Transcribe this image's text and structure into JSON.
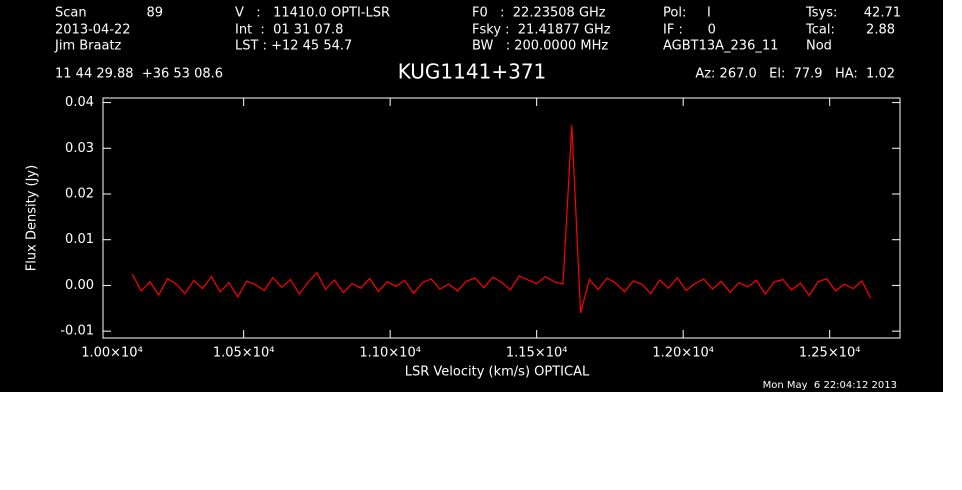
{
  "chart_data": {
    "type": "line",
    "title": "KUG1141+371",
    "annotations": [
      "Scan",
      "89",
      "2013-04-22",
      "Jim Braatz",
      "V   :   11410.0 OPTI-LSR",
      "Int  :  01 31 07.8",
      "LST : +12 45 54.7",
      "F0   :  22.23508 GHz",
      "Fsky :  21.41877 GHz",
      "BW   : 200.0000 MHz",
      "Pol:     I",
      "IF :      0",
      "AGBT13A_236_11",
      "Tsys:",
      "42.71",
      "Tcal:",
      "2.88",
      "Nod",
      "11 44 29.88  +36 53 08.6",
      "Az: 267.0   El:  77.9   HA:  1.02",
      "Mon May  6 22:04:12 2013"
    ],
    "x_label": "LSR Velocity (km/s) OPTICAL",
    "y_label": "Flux Density (Jy)",
    "xlim": [
      10020,
      12740
    ],
    "ylim": [
      -0.0115,
      0.041
    ],
    "xticks": [
      {
        "value": 10000,
        "label": "1.00×10⁴"
      },
      {
        "value": 10500,
        "label": "1.05×10⁴"
      },
      {
        "value": 11000,
        "label": "1.10×10⁴"
      },
      {
        "value": 11500,
        "label": "1.15×10⁴"
      },
      {
        "value": 12000,
        "label": "1.20×10⁴"
      },
      {
        "value": 12500,
        "label": "1.25×10⁴"
      }
    ],
    "yticks": [
      -0.01,
      {
        "value": 0,
        "label": "0.00"
      },
      0.01,
      0.02,
      0.03,
      0.04
    ],
    "series": [
      {
        "color": "#ff0000",
        "x": [
          10120,
          10150,
          10180,
          10210,
          10240,
          10270,
          10300,
          10330,
          10360,
          10390,
          10420,
          10450,
          10480,
          10510,
          10540,
          10570,
          10600,
          10630,
          10660,
          10690,
          10720,
          10750,
          10780,
          10810,
          10840,
          10870,
          10900,
          10930,
          10960,
          10990,
          11020,
          11050,
          11080,
          11110,
          11140,
          11170,
          11200,
          11230,
          11260,
          11290,
          11320,
          11350,
          11380,
          11410,
          11440,
          11470,
          11500,
          11530,
          11560,
          11590,
          11620,
          11650,
          11680,
          11710,
          11740,
          11770,
          11800,
          11830,
          11860,
          11890,
          11920,
          11950,
          11980,
          12010,
          12040,
          12070,
          12100,
          12130,
          12160,
          12190,
          12220,
          12250,
          12280,
          12310,
          12340,
          12370,
          12400,
          12430,
          12460,
          12490,
          12520,
          12550,
          12580,
          12610,
          12640
        ],
        "values": [
          0.0025,
          -0.0012,
          0.0008,
          -0.0021,
          0.0015,
          0.0003,
          -0.0018,
          0.0011,
          -0.0007,
          0.0019,
          -0.0014,
          0.0006,
          -0.0025,
          0.0009,
          0.0002,
          -0.0011,
          0.0017,
          -0.0004,
          0.0013,
          -0.0019,
          0.0007,
          0.0028,
          -0.0009,
          0.0012,
          -0.0016,
          0.0004,
          -0.0006,
          0.0015,
          -0.0013,
          0.0008,
          -0.0002,
          0.0011,
          -0.0017,
          0.0006,
          0.0014,
          -0.0008,
          0.0003,
          -0.0012,
          0.0009,
          0.0016,
          -0.0005,
          0.0018,
          0.0007,
          -0.001,
          0.0021,
          0.0012,
          0.0004,
          0.0019,
          0.0008,
          0.0003,
          0.035,
          -0.006,
          0.0013,
          -0.0009,
          0.0016,
          0.0005,
          -0.0014,
          0.001,
          0.0002,
          -0.0018,
          0.0012,
          -0.0006,
          0.0017,
          -0.0011,
          0.0004,
          0.0014,
          -0.0008,
          0.0009,
          -0.0015,
          0.0006,
          -0.0003,
          0.0011,
          -0.0019,
          0.0007,
          0.0013,
          -0.001,
          0.0005,
          -0.0022,
          0.0008,
          0.0015,
          -0.0012,
          0.0003,
          -0.0007,
          0.001,
          -0.0028
        ]
      }
    ]
  }
}
